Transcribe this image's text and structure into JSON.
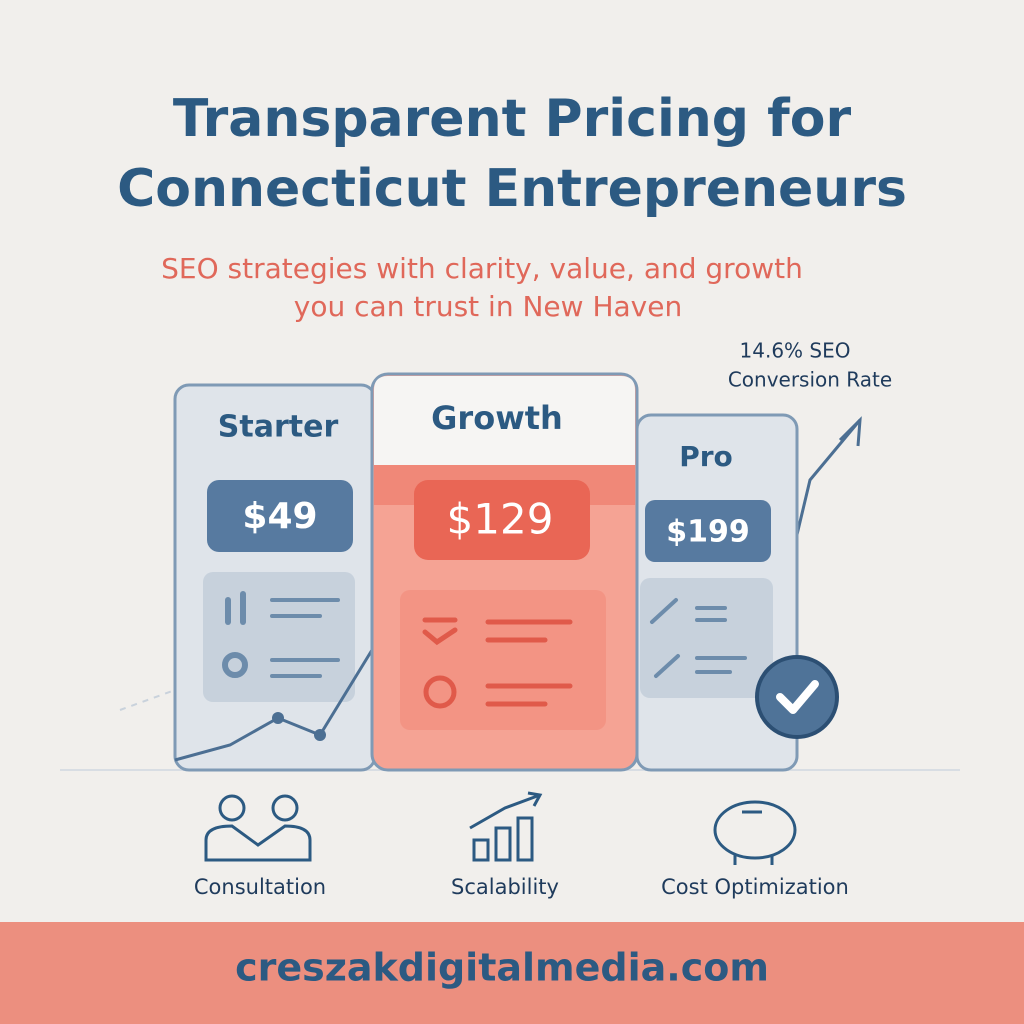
{
  "header": {
    "title_lines": [
      "Transparent Pricing for",
      "Connecticut Entrepreneurs"
    ],
    "subtitle_lines": [
      "SEO strategies with clarity, value, and growth",
      "you can trust in New Haven"
    ]
  },
  "stat": {
    "lines": [
      "14.6% SEO",
      "Conversion Rate"
    ]
  },
  "plans": [
    {
      "name": "Starter",
      "price": "$49"
    },
    {
      "name": "Growth",
      "price": "$129"
    },
    {
      "name": "Pro",
      "price": "$199"
    }
  ],
  "features": [
    "Consultation",
    "Scalability",
    "Cost Optimization"
  ],
  "footer": {
    "url": "creszakdigitalmedia.com"
  }
}
